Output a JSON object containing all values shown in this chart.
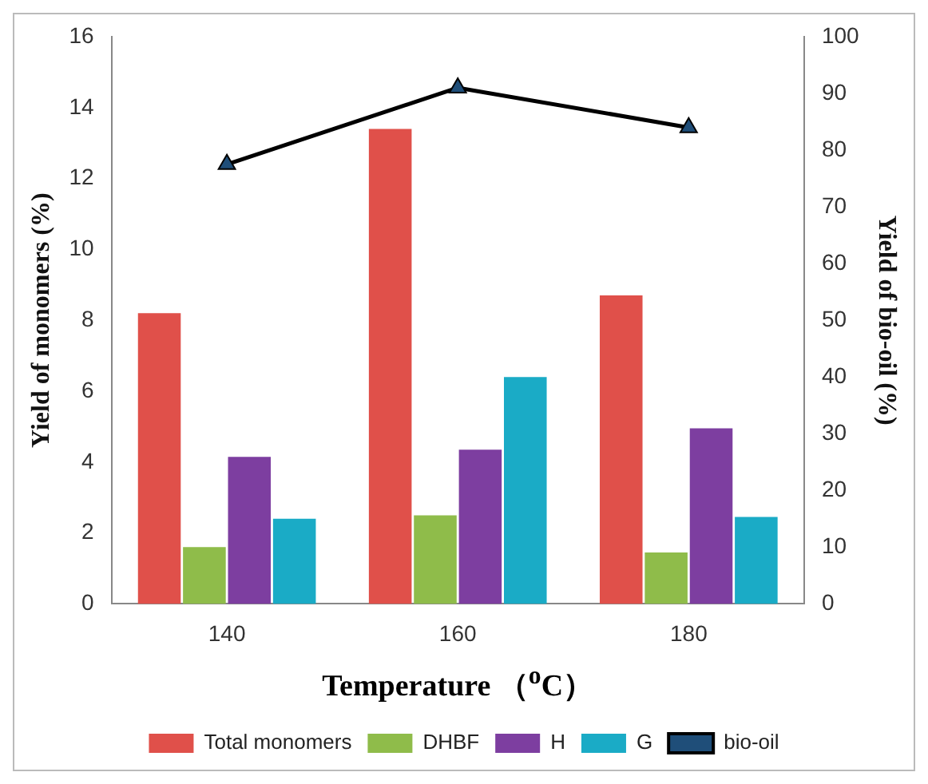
{
  "chart_data": {
    "type": "bar",
    "xlabel": "Temperature （$^{o}$C）",
    "ylabel": "Yield of monomers (%)",
    "y2label": "Yield of bio-oil (%)",
    "categories": [
      "140",
      "160",
      "180"
    ],
    "series": [
      {
        "name": "Total monomers",
        "color": "#e0504a",
        "values": [
          8.2,
          13.4,
          8.7
        ]
      },
      {
        "name": "DHBF",
        "color": "#8fbc4a",
        "values": [
          1.6,
          2.5,
          1.45
        ]
      },
      {
        "name": "H",
        "color": "#7d3ea0",
        "values": [
          4.15,
          4.35,
          4.95
        ]
      },
      {
        "name": "G",
        "color": "#1aabc6",
        "values": [
          2.4,
          6.4,
          2.45
        ]
      },
      {
        "name": "bio-oil",
        "type": "line",
        "axis": "y2",
        "color": "#000000",
        "marker": "triangle",
        "values": [
          77.5,
          91,
          84
        ]
      }
    ],
    "ylim": [
      0,
      16
    ],
    "yticks": [
      0,
      2,
      4,
      6,
      8,
      10,
      12,
      14,
      16
    ],
    "y2lim": [
      0,
      100
    ],
    "y2ticks": [
      0,
      10,
      20,
      30,
      40,
      50,
      60,
      70,
      80,
      90,
      100
    ],
    "legend": "bottom"
  }
}
